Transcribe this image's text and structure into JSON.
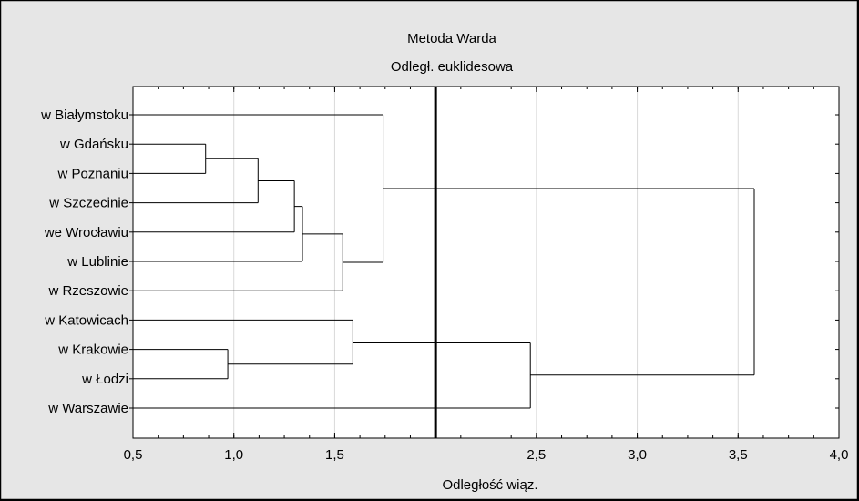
{
  "chart_data": {
    "type": "dendrogram",
    "title": "Metoda Warda",
    "subtitle": "Odległ. euklidesowa",
    "xlabel": "Odległość wiąz.",
    "xlim": [
      0.5,
      4.0
    ],
    "xticks": [
      {
        "value": 0.5,
        "label": "0,5"
      },
      {
        "value": 1.0,
        "label": "1,0"
      },
      {
        "value": 1.5,
        "label": "1,5"
      },
      {
        "value": 2.5,
        "label": "2,5"
      },
      {
        "value": 3.0,
        "label": "3,0"
      },
      {
        "value": 3.5,
        "label": "3,5"
      },
      {
        "value": 4.0,
        "label": "4,0"
      }
    ],
    "cut_line": 2.0,
    "leaves": [
      "w Białymstoku",
      "w Gdańsku",
      "w Poznaniu",
      "w Szczecinie",
      "we Wrocławiu",
      "w Lublinie",
      "w Rzeszowie",
      "w Katowicach",
      "w Krakowie",
      "w Łodzi",
      "w Warszawie"
    ],
    "merges": [
      {
        "a": "L1",
        "b": "L2",
        "height": 0.86
      },
      {
        "a": "M0",
        "b": "L3",
        "height": 1.12
      },
      {
        "a": "L8",
        "b": "L9",
        "height": 0.97
      },
      {
        "a": "M1",
        "b": "L4",
        "height": 1.3
      },
      {
        "a": "M3",
        "b": "L5",
        "height": 1.34
      },
      {
        "a": "M4",
        "b": "L6",
        "height": 1.54
      },
      {
        "a": "L7",
        "b": "M2",
        "height": 1.59
      },
      {
        "a": "L0",
        "b": "M5",
        "height": 1.74
      },
      {
        "a": "M6",
        "b": "L10",
        "height": 2.47
      },
      {
        "a": "M7",
        "b": "M8",
        "height": 3.58
      }
    ]
  }
}
